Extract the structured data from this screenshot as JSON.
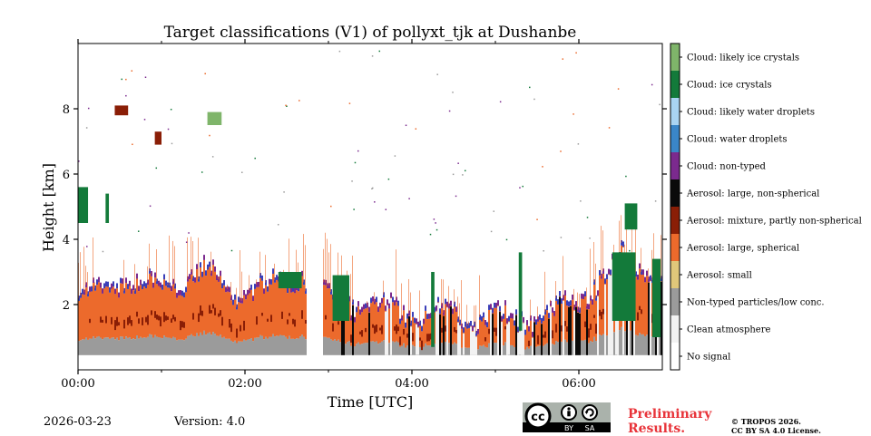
{
  "colors": {
    "no_signal": "#ffffff",
    "clean": "#f2f2f2",
    "nontyped_lowconc": "#9b9b9b",
    "aer_small": "#e0c77a",
    "aer_large_spherical": "#ec6a2c",
    "aer_mixture": "#8a1e06",
    "aer_large_nonspherical": "#0a0a0a",
    "cloud_nontyped": "#7b2a8e",
    "cloud_water": "#3a86c8",
    "cloud_likely_water": "#a9d4f2",
    "cloud_ice": "#137a3a",
    "cloud_likely_ice": "#7fb56a",
    "blue_edge": "#3b3fb8"
  },
  "chart_data": {
    "type": "heatmap",
    "title": "Target classifications (V1) of pollyxt_tjk at Dushanbe",
    "xlabel": "Time [UTC]",
    "ylabel": "Height [km]",
    "x_range_hours": [
      0,
      7
    ],
    "y_range_km": [
      0,
      10
    ],
    "x_ticks": [
      {
        "value": 0,
        "label": "00:00"
      },
      {
        "value": 2,
        "label": "02:00"
      },
      {
        "value": 4,
        "label": "04:00"
      },
      {
        "value": 6,
        "label": "06:00"
      }
    ],
    "y_ticks": [
      {
        "value": 2,
        "label": "2"
      },
      {
        "value": 4,
        "label": "4"
      },
      {
        "value": 6,
        "label": "6"
      },
      {
        "value": 8,
        "label": "8"
      }
    ],
    "data_gap_hours": [
      2.73,
      2.92
    ],
    "lowest_height_km": 0.45,
    "aerosol_layer_top_km": [
      {
        "t": 0.0,
        "h": 2.1
      },
      {
        "t": 0.5,
        "h": 2.8
      },
      {
        "t": 1.0,
        "h": 2.5
      },
      {
        "t": 1.5,
        "h": 3.0
      },
      {
        "t": 2.0,
        "h": 2.3
      },
      {
        "t": 2.7,
        "h": 2.9
      },
      {
        "t": 3.0,
        "h": 2.2
      },
      {
        "t": 3.5,
        "h": 2.0
      },
      {
        "t": 4.0,
        "h": 1.7
      },
      {
        "t": 4.5,
        "h": 1.65
      },
      {
        "t": 5.0,
        "h": 1.6
      },
      {
        "t": 5.5,
        "h": 1.55
      },
      {
        "t": 6.0,
        "h": 2.2
      },
      {
        "t": 6.5,
        "h": 3.4
      },
      {
        "t": 7.0,
        "h": 3.0
      }
    ],
    "cloud_features": [
      {
        "class": "cloud_ice",
        "t0": 0.0,
        "t1": 0.12,
        "h0": 4.5,
        "h1": 5.6
      },
      {
        "class": "cloud_ice",
        "t0": 0.33,
        "t1": 0.37,
        "h0": 4.5,
        "h1": 5.4
      },
      {
        "class": "cloud_likely_ice",
        "t0": 1.55,
        "t1": 1.72,
        "h0": 7.5,
        "h1": 7.9
      },
      {
        "class": "aer_mixture",
        "t0": 0.44,
        "t1": 0.6,
        "h0": 7.8,
        "h1": 8.1
      },
      {
        "class": "aer_mixture",
        "t0": 0.92,
        "t1": 1.0,
        "h0": 6.9,
        "h1": 7.3
      },
      {
        "class": "cloud_ice",
        "t0": 2.4,
        "t1": 2.68,
        "h0": 2.5,
        "h1": 3.0
      },
      {
        "class": "cloud_ice",
        "t0": 6.55,
        "t1": 6.7,
        "h0": 4.3,
        "h1": 5.1
      },
      {
        "class": "cloud_ice",
        "t0": 6.4,
        "t1": 6.68,
        "h0": 1.5,
        "h1": 3.6
      },
      {
        "class": "cloud_ice",
        "t0": 6.88,
        "t1": 6.98,
        "h0": 1.0,
        "h1": 3.4
      },
      {
        "class": "cloud_ice",
        "t0": 5.28,
        "t1": 5.32,
        "h0": 1.2,
        "h1": 3.6
      },
      {
        "class": "cloud_ice",
        "t0": 4.23,
        "t1": 4.27,
        "h0": 0.7,
        "h1": 3.0
      },
      {
        "class": "cloud_ice",
        "t0": 3.05,
        "t1": 3.25,
        "h0": 1.5,
        "h1": 2.9
      }
    ],
    "legend": [
      {
        "label": "Cloud: likely ice crystals",
        "color_key": "cloud_likely_ice"
      },
      {
        "label": "Cloud: ice crystals",
        "color_key": "cloud_ice"
      },
      {
        "label": "Cloud: likely water droplets",
        "color_key": "cloud_likely_water"
      },
      {
        "label": "Cloud: water droplets",
        "color_key": "cloud_water"
      },
      {
        "label": "Cloud: non-typed",
        "color_key": "cloud_nontyped"
      },
      {
        "label": "Aerosol: large, non-spherical",
        "color_key": "aer_large_nonspherical"
      },
      {
        "label": "Aerosol: mixture, partly non-spherical",
        "color_key": "aer_mixture"
      },
      {
        "label": "Aerosol: large, spherical",
        "color_key": "aer_large_spherical"
      },
      {
        "label": "Aerosol: small",
        "color_key": "aer_small"
      },
      {
        "label": "Non-typed particles/low conc.",
        "color_key": "nontyped_lowconc"
      },
      {
        "label": "Clean atmosphere",
        "color_key": "clean"
      },
      {
        "label": "No signal",
        "color_key": "no_signal"
      }
    ]
  },
  "footer": {
    "date": "2026-03-23",
    "version": "Version: 4.0",
    "preliminary_line1": "Preliminary",
    "preliminary_line2": "Results.",
    "copyright_line1": "© TROPOS 2026.",
    "copyright_line2": "CC BY SA 4.0 License.",
    "cc_label": "cc",
    "by_label": "BY",
    "sa_label": "SA"
  }
}
